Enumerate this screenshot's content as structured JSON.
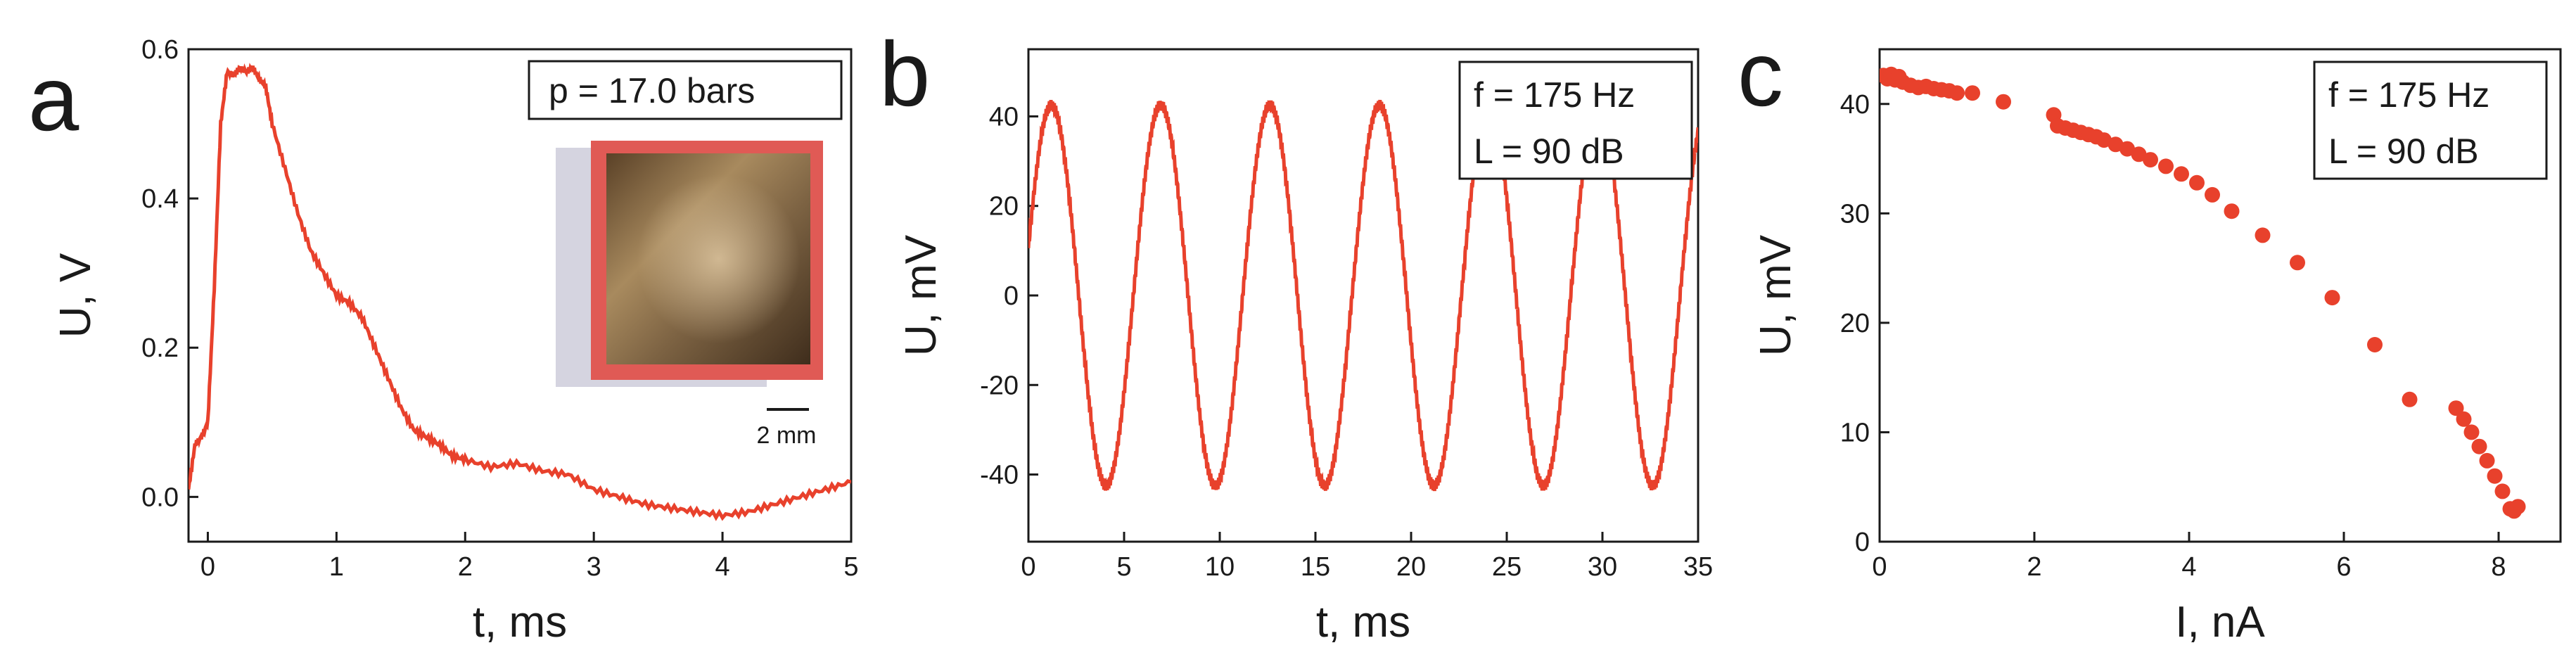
{
  "colors": {
    "series": "#e8412c",
    "axis": "#1a1a1a"
  },
  "chart_data": [
    {
      "type": "line",
      "panel": "a",
      "xlabel": "t, ms",
      "ylabel": "U, V",
      "xlim": [
        -0.15,
        5
      ],
      "ylim": [
        -0.06,
        0.6
      ],
      "xticks": [
        0,
        1,
        2,
        3,
        4,
        5
      ],
      "yticks": [
        0.0,
        0.2,
        0.4,
        0.6
      ],
      "ytick_labels": [
        "0.0",
        "0.2",
        "0.4",
        "0.6"
      ],
      "legend": [
        "p = 17.0 bars"
      ],
      "legend_position": "top-right",
      "inset": {
        "description": "photo",
        "scale_label": "2 mm"
      },
      "series": [
        {
          "x": [
            -0.15,
            -0.1,
            -0.05,
            0.0,
            0.05,
            0.1,
            0.15,
            0.2,
            0.25,
            0.3,
            0.35,
            0.4,
            0.45,
            0.5,
            0.6,
            0.7,
            0.8,
            0.9,
            1.0,
            1.1,
            1.2,
            1.3,
            1.4,
            1.5,
            1.6,
            1.7,
            1.8,
            1.9,
            2.0,
            2.2,
            2.4,
            2.6,
            2.8,
            3.0,
            3.2,
            3.4,
            3.6,
            3.8,
            4.0,
            4.2,
            4.4,
            4.6,
            4.8,
            5.0
          ],
          "y": [
            0.01,
            0.07,
            0.08,
            0.1,
            0.28,
            0.5,
            0.57,
            0.565,
            0.575,
            0.57,
            0.575,
            0.56,
            0.55,
            0.5,
            0.44,
            0.38,
            0.33,
            0.3,
            0.27,
            0.26,
            0.24,
            0.2,
            0.16,
            0.12,
            0.09,
            0.08,
            0.07,
            0.055,
            0.05,
            0.04,
            0.045,
            0.035,
            0.03,
            0.01,
            0.0,
            -0.01,
            -0.015,
            -0.02,
            -0.025,
            -0.02,
            -0.01,
            0.0,
            0.01,
            0.02
          ]
        }
      ]
    },
    {
      "type": "line",
      "panel": "b",
      "xlabel": "t, ms",
      "ylabel": "U, mV",
      "xlim": [
        0,
        35
      ],
      "ylim": [
        -55,
        55
      ],
      "xticks": [
        0,
        5,
        10,
        15,
        20,
        25,
        30,
        35
      ],
      "yticks": [
        -40,
        -20,
        0,
        20,
        40
      ],
      "legend": [
        "f = 175 Hz",
        "L = 90 dB"
      ],
      "legend_position": "top-right",
      "series": [
        {
          "function": "sine",
          "amplitude": 42.5,
          "frequency_khz": 0.175,
          "phase_peak_ms": 1.2,
          "t_start": 0,
          "t_end": 35
        }
      ]
    },
    {
      "type": "scatter",
      "panel": "c",
      "xlabel": "I, nA",
      "ylabel": "U, mV",
      "xlim": [
        0,
        8.8
      ],
      "ylim": [
        0,
        45
      ],
      "xticks": [
        0,
        2,
        4,
        6,
        8
      ],
      "yticks": [
        0,
        10,
        20,
        30,
        40
      ],
      "legend": [
        "f = 175 Hz",
        "L = 90 dB"
      ],
      "legend_position": "top-right",
      "series": [
        {
          "x": [
            0.05,
            0.1,
            0.15,
            0.2,
            0.25,
            0.3,
            0.4,
            0.5,
            0.6,
            0.7,
            0.8,
            0.9,
            1.0,
            1.2,
            1.6,
            2.25,
            2.3,
            2.4,
            2.5,
            2.6,
            2.7,
            2.8,
            2.9,
            3.05,
            3.2,
            3.35,
            3.5,
            3.7,
            3.9,
            4.1,
            4.3,
            4.55,
            4.95,
            5.4,
            5.85,
            6.4,
            6.85,
            7.45,
            7.55,
            7.65,
            7.75,
            7.85,
            7.95,
            8.05,
            8.15,
            8.2,
            8.25
          ],
          "y": [
            42.6,
            42.3,
            42.7,
            42.2,
            42.5,
            42.0,
            41.7,
            41.5,
            41.6,
            41.4,
            41.3,
            41.2,
            41.0,
            41.0,
            40.2,
            39.0,
            38.0,
            37.8,
            37.6,
            37.4,
            37.2,
            37.0,
            36.7,
            36.3,
            35.9,
            35.4,
            34.9,
            34.3,
            33.6,
            32.8,
            31.7,
            30.2,
            28.0,
            25.5,
            22.3,
            18.0,
            13.0,
            12.2,
            11.2,
            10.0,
            8.7,
            7.4,
            6.0,
            4.6,
            3.0,
            2.8,
            3.2
          ]
        }
      ]
    }
  ]
}
